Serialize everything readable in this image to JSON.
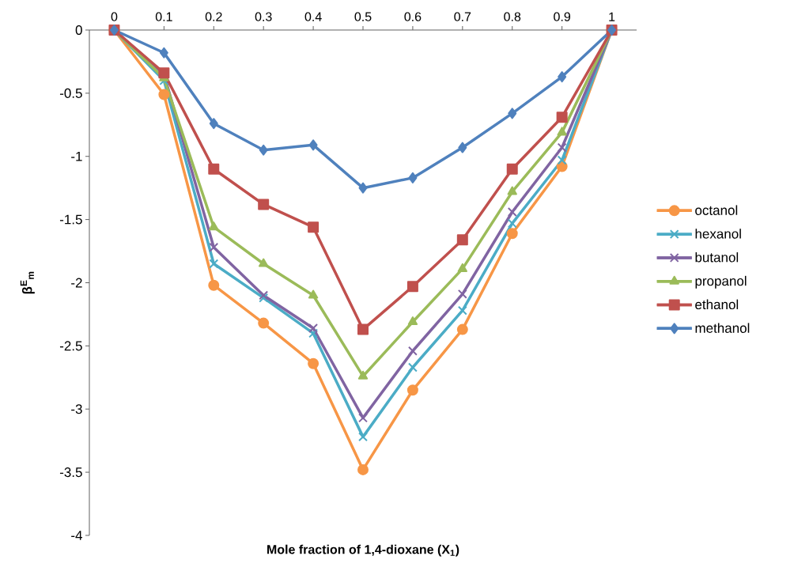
{
  "chart_data": {
    "type": "line",
    "xlabel": "Mole fraction of  1,4-dioxane (X$_{1}$)",
    "ylabel": "β$^{E}$$_{m}$",
    "categories": [
      "0",
      "0.1",
      "0.2",
      "0.3",
      "0.4",
      "0.5",
      "0.6",
      "0.7",
      "0.8",
      "0.9",
      "1"
    ],
    "ylim": [
      -4,
      0
    ],
    "yticks": [
      0,
      -0.5,
      -1,
      -1.5,
      -2,
      -2.5,
      -3,
      -3.5,
      -4
    ],
    "legend": "right",
    "line_style": "solid",
    "series": [
      {
        "name": "octanol",
        "color": "#f79646",
        "marker": "circle",
        "values": [
          0,
          -0.51,
          -2.02,
          -2.32,
          -2.64,
          -3.48,
          -2.85,
          -2.37,
          -1.61,
          -1.08,
          0
        ]
      },
      {
        "name": "hexanol",
        "color": "#4bacc6",
        "marker": "cross",
        "values": [
          0,
          -0.4,
          -1.85,
          -2.12,
          -2.4,
          -3.22,
          -2.67,
          -2.22,
          -1.53,
          -1.03,
          0
        ]
      },
      {
        "name": "butanol",
        "color": "#8064a2",
        "marker": "cross",
        "values": [
          0,
          -0.35,
          -1.72,
          -2.1,
          -2.36,
          -3.07,
          -2.54,
          -2.09,
          -1.44,
          -0.93,
          0
        ]
      },
      {
        "name": "propanol",
        "color": "#9bbb59",
        "marker": "triangle",
        "values": [
          0,
          -0.38,
          -1.56,
          -1.85,
          -2.1,
          -2.74,
          -2.31,
          -1.89,
          -1.28,
          -0.81,
          0
        ]
      },
      {
        "name": "ethanol",
        "color": "#c0504d",
        "marker": "square",
        "values": [
          0,
          -0.34,
          -1.1,
          -1.38,
          -1.56,
          -2.37,
          -2.03,
          -1.66,
          -1.1,
          -0.69,
          0
        ]
      },
      {
        "name": "methanol",
        "color": "#4f81bd",
        "marker": "diamond",
        "values": [
          0,
          -0.18,
          -0.74,
          -0.95,
          -0.91,
          -1.25,
          -1.17,
          -0.93,
          -0.66,
          -0.37,
          0
        ]
      }
    ]
  }
}
